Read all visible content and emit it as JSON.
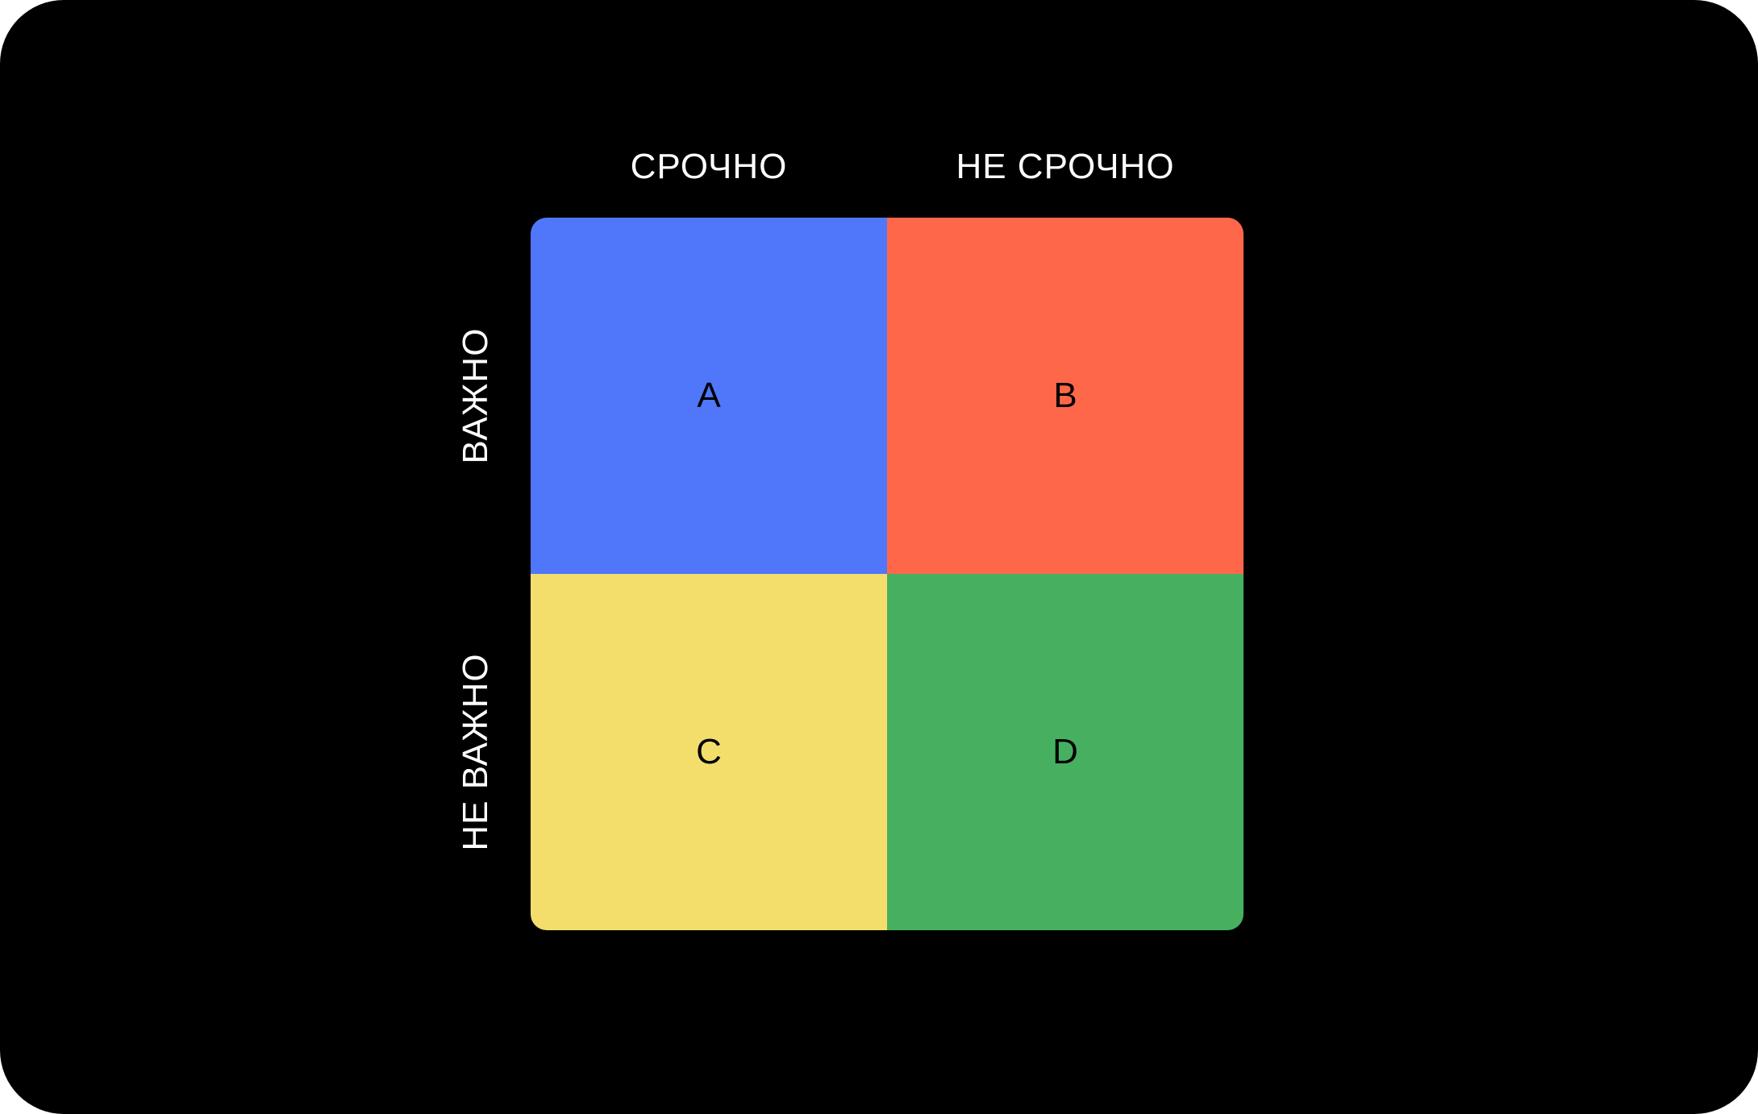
{
  "columns": {
    "urgent": "СРОЧНО",
    "not_urgent": "НЕ СРОЧНО"
  },
  "rows": {
    "important": "ВАЖНО",
    "not_important": "НЕ ВАЖНО"
  },
  "quadrants": [
    {
      "label": "A",
      "color": "#5077F9"
    },
    {
      "label": "B",
      "color": "#FF674A"
    },
    {
      "label": "C",
      "color": "#F3DE6C"
    },
    {
      "label": "D",
      "color": "#46B060"
    }
  ],
  "colors": {
    "background": "#000000",
    "axis_text": "#FFFFFF",
    "quadrant_text": "#000000"
  }
}
